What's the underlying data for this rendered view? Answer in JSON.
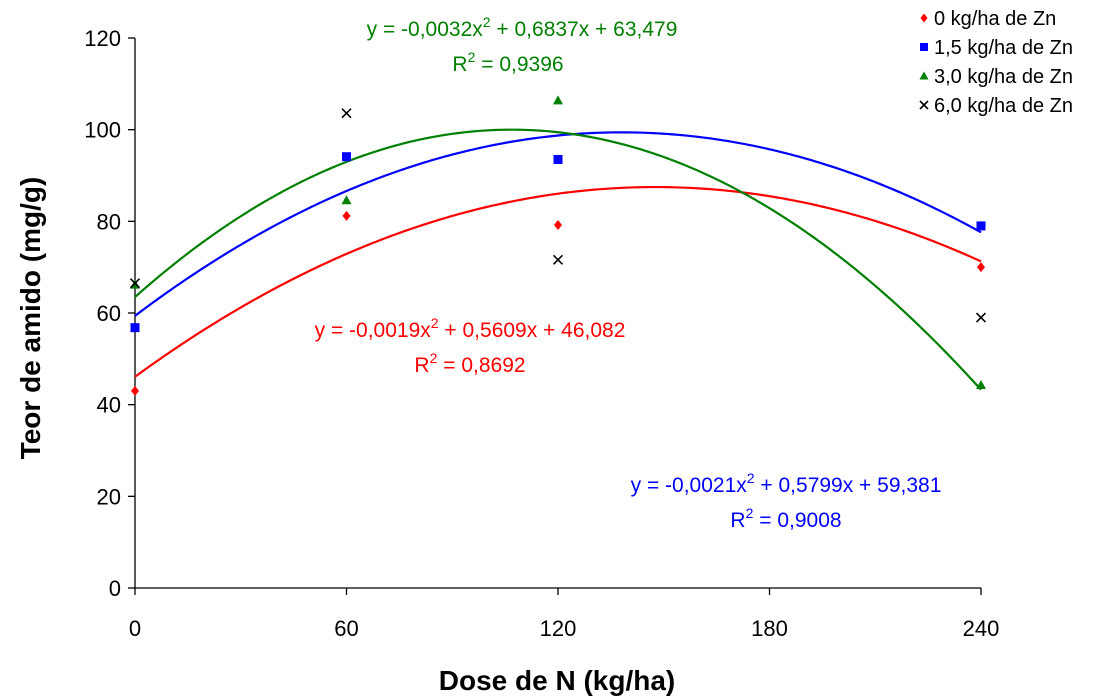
{
  "chart_data": {
    "type": "scatter",
    "title": "",
    "xlabel": "Dose de N (kg/ha)",
    "ylabel": "Teor de amido (mg/g)",
    "xlim": [
      0,
      240
    ],
    "ylim": [
      0,
      120
    ],
    "xticks": [
      "0",
      "60",
      "120",
      "180",
      "240"
    ],
    "yticks": [
      "0",
      "20",
      "40",
      "60",
      "80",
      "100",
      "120"
    ],
    "grid": false,
    "legend_position": "top-right",
    "series": [
      {
        "name": "0 kg/ha de Zn",
        "color": "#ff0000",
        "marker": "diamond",
        "x": [
          0,
          60,
          120,
          240
        ],
        "y": [
          43.0,
          81.2,
          79.2,
          70.0
        ],
        "fit": {
          "a": -0.0019,
          "b": 0.5609,
          "c": 46.082
        },
        "equation": "y = -0,0019x",
        "equation_tail": " + 0,5609x + 46,082",
        "r2_label": "R",
        "r2_value": " = 0,8692"
      },
      {
        "name": "1,5 kg/ha de Zn",
        "color": "#0000ff",
        "marker": "square",
        "x": [
          0,
          60,
          120,
          240
        ],
        "y": [
          56.8,
          94.1,
          93.5,
          79.0
        ],
        "fit": {
          "a": -0.0021,
          "b": 0.5799,
          "c": 59.381
        },
        "equation": "y = -0,0021x",
        "equation_tail": " + 0,5799x + 59,381",
        "r2_label": "R",
        "r2_value": " = 0,9008"
      },
      {
        "name": "3,0 kg/ha de Zn",
        "color": "#008000",
        "marker": "triangle",
        "x": [
          0,
          60,
          120,
          240
        ],
        "y": [
          66.2,
          84.6,
          106.4,
          44.3
        ],
        "fit": {
          "a": -0.0032,
          "b": 0.6837,
          "c": 63.479
        },
        "equation": "y = -0,0032x",
        "equation_tail": " + 0,6837x + 63,479",
        "r2_label": "R",
        "r2_value": " = 0,9396"
      },
      {
        "name": "6,0 kg/ha de Zn",
        "color": "#000000",
        "marker": "x",
        "x": [
          0,
          60,
          120,
          240
        ],
        "y": [
          66.5,
          103.6,
          71.6,
          59.0
        ],
        "fit": null,
        "equation": "",
        "equation_tail": "",
        "r2_label": "",
        "r2_value": ""
      }
    ],
    "exponent": "2"
  }
}
